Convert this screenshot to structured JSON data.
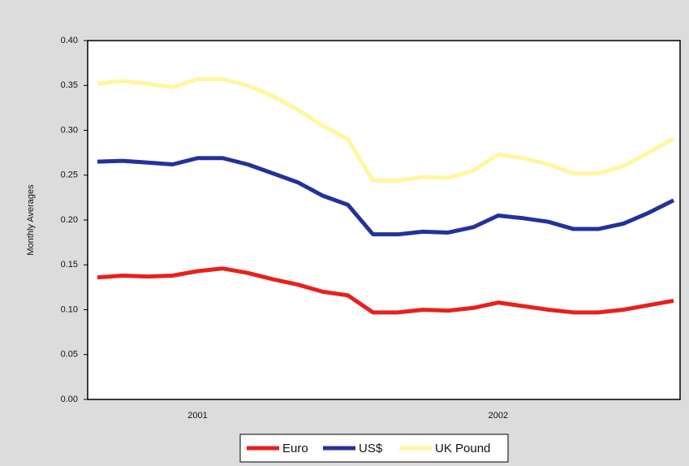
{
  "chart_data": {
    "type": "line",
    "y_label": "Monthly Averages",
    "categories": [
      null,
      null,
      null,
      null,
      "2001",
      null,
      null,
      null,
      null,
      null,
      null,
      null,
      null,
      null,
      null,
      null,
      "2002",
      null,
      null,
      null,
      null,
      null,
      null,
      null
    ],
    "series": [
      {
        "name": "Euro",
        "color": "#e8201c",
        "values": [
          0.136,
          0.138,
          0.137,
          0.138,
          0.143,
          0.146,
          0.141,
          0.134,
          0.128,
          0.12,
          0.116,
          0.097,
          0.097,
          0.1,
          0.099,
          0.102,
          0.108,
          0.104,
          0.1,
          0.097,
          0.097,
          0.1,
          0.105,
          0.11
        ]
      },
      {
        "name": "US$",
        "color": "#23329a",
        "values": [
          0.265,
          0.266,
          0.264,
          0.262,
          0.269,
          0.269,
          0.262,
          0.252,
          0.242,
          0.227,
          0.217,
          0.184,
          0.184,
          0.187,
          0.186,
          0.192,
          0.205,
          0.202,
          0.198,
          0.19,
          0.19,
          0.196,
          0.208,
          0.222
        ]
      },
      {
        "name": "UK Pound",
        "color": "#fff6a0",
        "values": [
          0.352,
          0.355,
          0.352,
          0.348,
          0.357,
          0.357,
          0.35,
          0.338,
          0.323,
          0.305,
          0.29,
          0.244,
          0.244,
          0.248,
          0.247,
          0.255,
          0.273,
          0.269,
          0.262,
          0.252,
          0.252,
          0.26,
          0.275,
          0.291
        ]
      }
    ],
    "ylim": [
      0,
      0.4
    ],
    "yticks": [
      {
        "value": 0,
        "label": "0.00"
      },
      0.05,
      {
        "value": 0.1,
        "label": "0.10"
      },
      0.15,
      {
        "value": 0.2,
        "label": "0.20"
      },
      0.25,
      {
        "value": 0.3,
        "label": "0.30"
      },
      0.35,
      {
        "value": 0.4,
        "label": "0.40"
      }
    ],
    "grid": false,
    "legend": "bottom"
  }
}
